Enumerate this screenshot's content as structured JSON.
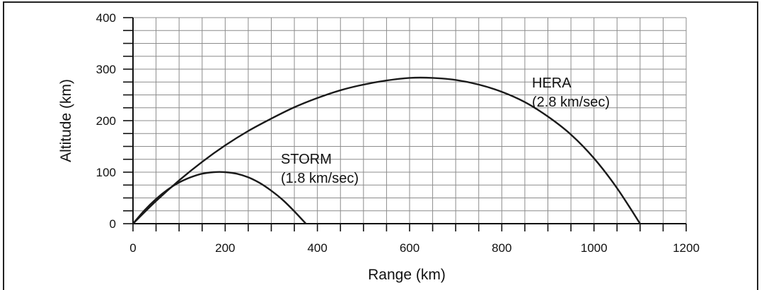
{
  "chart_data": {
    "type": "line",
    "title": "",
    "xlabel": "Range (km)",
    "ylabel": "Altitude (km)",
    "xlim": [
      0,
      1200
    ],
    "ylim": [
      0,
      400
    ],
    "x_ticks": [
      0,
      200,
      400,
      600,
      800,
      1000,
      1200
    ],
    "y_ticks": [
      0,
      100,
      200,
      300,
      400
    ],
    "grid": true,
    "grid_minor_x": 50,
    "grid_minor_y": 25,
    "legend": "none",
    "colors": {
      "line": "#1a1a1a",
      "grid": "#8c8c8c",
      "axis": "#111111"
    },
    "series": [
      {
        "name_line1": "STORM",
        "name_line2": "(1.8 km/sec)",
        "x": [
          0,
          25,
          50,
          75,
          100,
          125,
          150,
          175,
          200,
          225,
          250,
          275,
          300,
          325,
          350,
          375
        ],
        "y": [
          0,
          26,
          48,
          66,
          80,
          90,
          97,
          100,
          100,
          97,
          90,
          79,
          64,
          46,
          24,
          0
        ]
      },
      {
        "name_line1": "HERA",
        "name_line2": "(2.8 km/sec)",
        "x": [
          0,
          50,
          100,
          150,
          200,
          250,
          300,
          350,
          400,
          450,
          500,
          550,
          600,
          650,
          700,
          750,
          800,
          850,
          900,
          950,
          1000,
          1050,
          1100
        ],
        "y": [
          0,
          44,
          84,
          120,
          152,
          180,
          204,
          226,
          244,
          259,
          270,
          278,
          283,
          283,
          279,
          270,
          256,
          236,
          208,
          173,
          127,
          69,
          0
        ]
      }
    ]
  }
}
